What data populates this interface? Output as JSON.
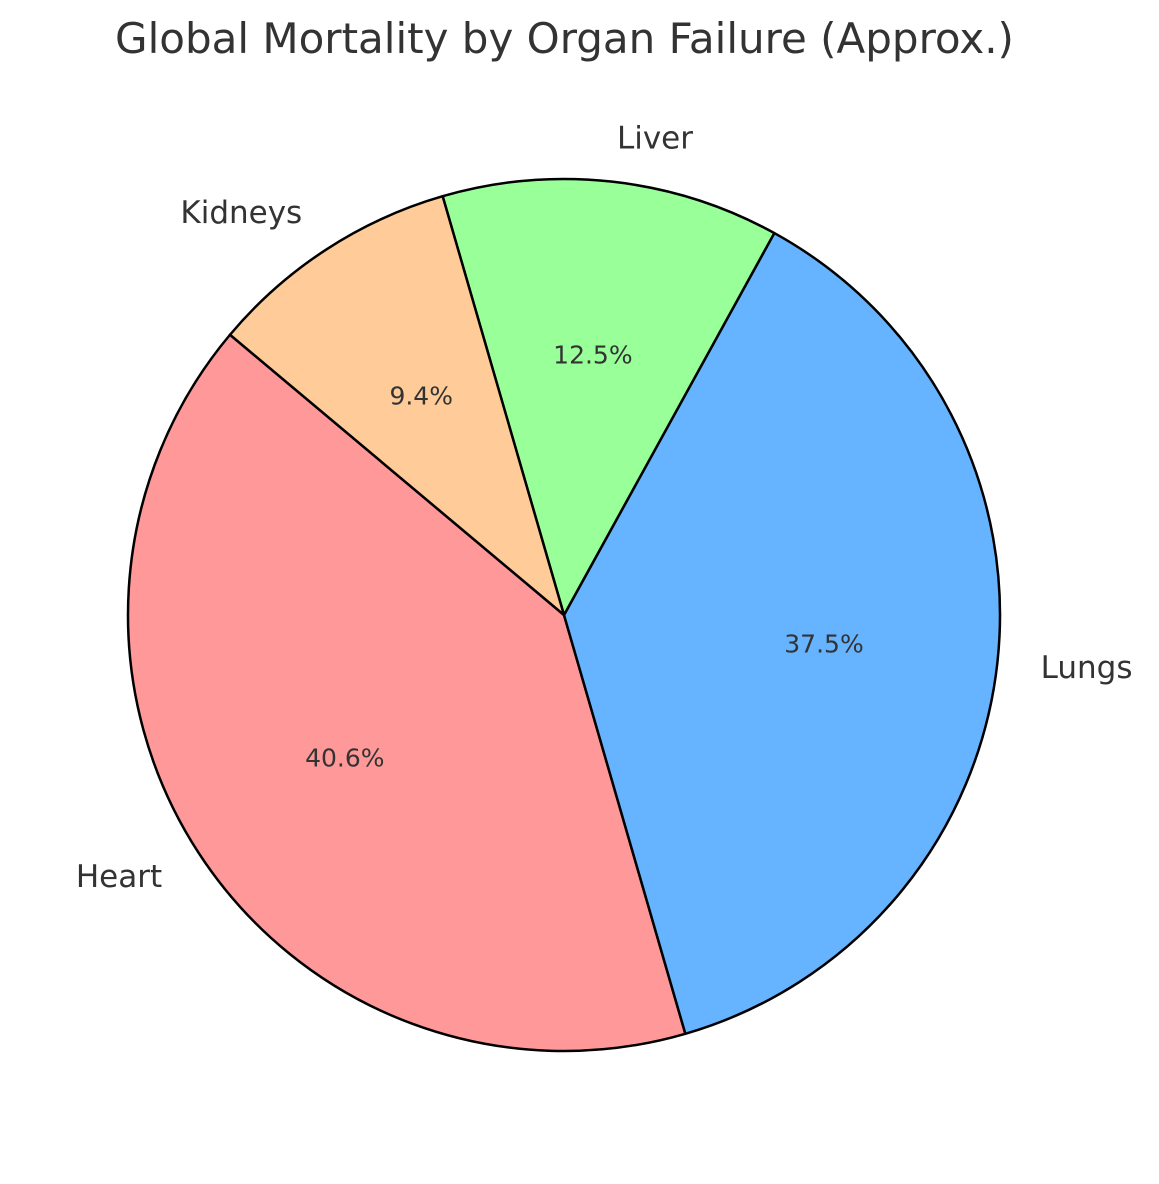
{
  "chart_data": {
    "type": "pie",
    "title": "Global Mortality by Organ Failure (Approx.)",
    "categories": [
      "Heart",
      "Lungs",
      "Liver",
      "Kidneys"
    ],
    "values": [
      40.6,
      37.5,
      12.5,
      9.4
    ],
    "value_labels": [
      "40.6%",
      "37.5%",
      "12.5%",
      "9.4%"
    ],
    "colors": [
      "#ff9999",
      "#66b3ff",
      "#99ff99",
      "#ffcc99"
    ],
    "start_angle_deg": 140,
    "direction": "counterclockwise",
    "edge_color": "#000000",
    "legend": "none"
  }
}
